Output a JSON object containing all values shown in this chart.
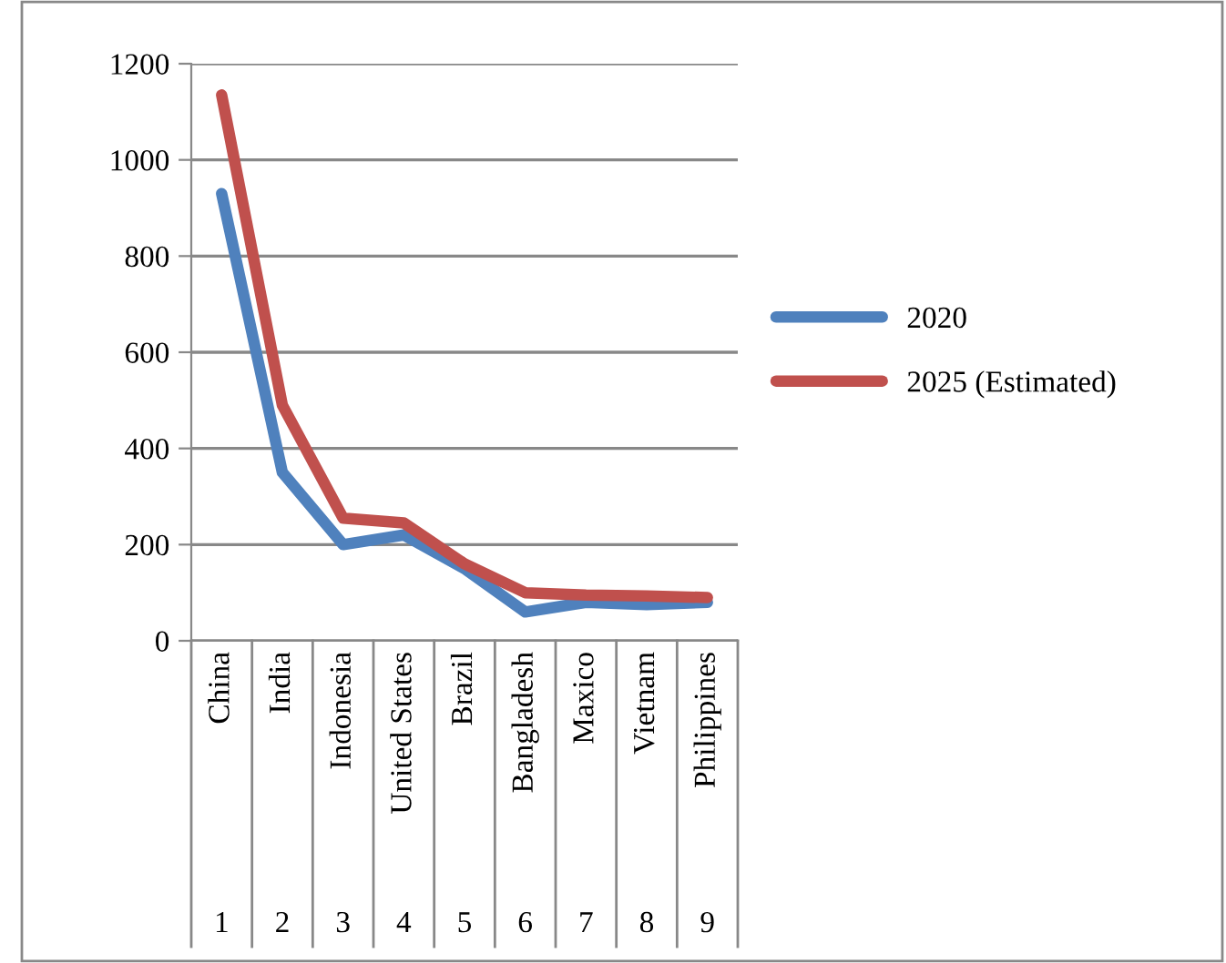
{
  "chart_data": {
    "type": "line",
    "categories": [
      "China",
      "India",
      "Indonesia",
      "United States",
      "Brazil",
      "Bangladesh",
      "Maxico",
      "Vietnam",
      "Philippines"
    ],
    "series": [
      {
        "name": "2020",
        "color": "#4f81bd",
        "values": [
          930,
          350,
          200,
          220,
          150,
          60,
          80,
          75,
          80
        ]
      },
      {
        "name": "2025 (Estimated)",
        "color": "#c0504d",
        "values": [
          1135,
          490,
          255,
          245,
          160,
          100,
          95,
          93,
          90
        ]
      }
    ],
    "annotations": [
      "1",
      "2",
      "3",
      "4",
      "5",
      "6",
      "7",
      "8",
      "9"
    ],
    "ylim": [
      0,
      1200
    ],
    "yticks": [
      0,
      200,
      400,
      600,
      800,
      1000,
      1200
    ],
    "grid": "y",
    "legend": "right",
    "marker": "none",
    "line_style": "solid"
  }
}
